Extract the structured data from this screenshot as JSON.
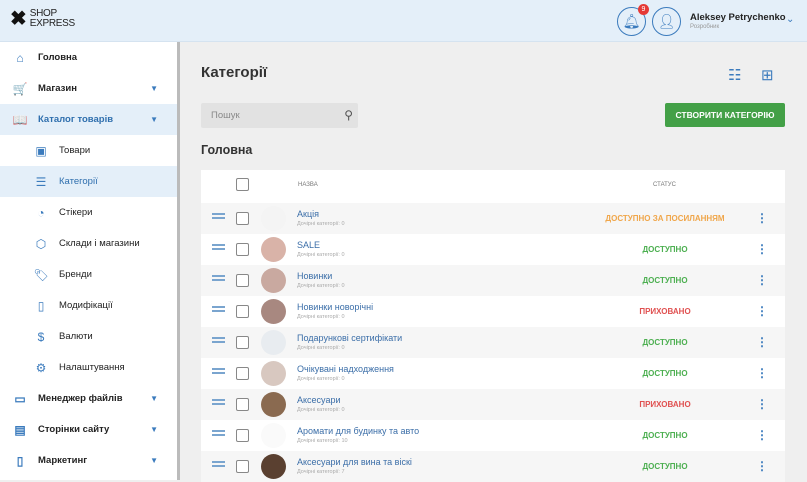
{
  "header": {
    "logo_line1": "SHOP",
    "logo_line2": "EXPRESS",
    "notif_count": "9",
    "user_name": "Aleksey Petrychenko",
    "user_role": "Розробник"
  },
  "sidebar": {
    "items": [
      {
        "label": "Головна",
        "icon": "home-icon",
        "glyph": "⌂",
        "type": "top"
      },
      {
        "label": "Магазин",
        "icon": "cart-icon",
        "glyph": "🛒",
        "type": "top",
        "chev": "▼"
      },
      {
        "label": "Каталог товарів",
        "icon": "book-icon",
        "glyph": "📖",
        "type": "top",
        "chev": "▼",
        "active": true
      },
      {
        "label": "Товари",
        "icon": "box-icon",
        "glyph": "▣",
        "type": "sub"
      },
      {
        "label": "Категорії",
        "icon": "list-icon",
        "glyph": "☰",
        "type": "sub",
        "active": true
      },
      {
        "label": "Стікери",
        "icon": "sticker-icon",
        "glyph": "◔",
        "type": "sub"
      },
      {
        "label": "Склади і магазини",
        "icon": "cube-icon",
        "glyph": "⬡",
        "type": "sub"
      },
      {
        "label": "Бренди",
        "icon": "tag-icon",
        "glyph": "🏷",
        "type": "sub"
      },
      {
        "label": "Модифікації",
        "icon": "bookmark-icon",
        "glyph": "▯",
        "type": "sub"
      },
      {
        "label": "Валюти",
        "icon": "dollar-icon",
        "glyph": "$",
        "type": "sub"
      },
      {
        "label": "Налаштування",
        "icon": "gear-icon",
        "glyph": "⚙",
        "type": "sub"
      },
      {
        "label": "Менеджер файлів",
        "icon": "folder-icon",
        "glyph": "▭",
        "type": "top",
        "chev": "▼"
      },
      {
        "label": "Сторінки сайту",
        "icon": "pages-icon",
        "glyph": "▤",
        "type": "top",
        "chev": "▼"
      },
      {
        "label": "Маркетинг",
        "icon": "marketing-icon",
        "glyph": "▯",
        "type": "top",
        "chev": "▼"
      }
    ]
  },
  "main": {
    "title": "Категорії",
    "search_placeholder": "Пошук",
    "create_label": "СТВОРИТИ КАТЕГОРІЮ",
    "section": "Головна",
    "columns": {
      "name": "НАЗВА",
      "status": "СТАТУС"
    },
    "rows": [
      {
        "name": "Акція",
        "sub": "Дочірні категорії: 0",
        "status": "ДОСТУПНО ЗА ПОСИЛАННЯМ",
        "status_color": "#f0a64a",
        "thumb": "#f4f4f4"
      },
      {
        "name": "SALE",
        "sub": "Дочірні категорії: 0",
        "status": "ДОСТУПНО",
        "status_color": "#4caf50",
        "thumb": "#d9b3a8"
      },
      {
        "name": "Новинки",
        "sub": "Дочірні категорії: 0",
        "status": "ДОСТУПНО",
        "status_color": "#4caf50",
        "thumb": "#c9a9a0"
      },
      {
        "name": "Новинки новорічні",
        "sub": "Дочірні категорії: 0",
        "status": "ПРИХОВАНО",
        "status_color": "#e05050",
        "thumb": "#a88880"
      },
      {
        "name": "Подарункові сертифікати",
        "sub": "Дочірні категорії: 0",
        "status": "ДОСТУПНО",
        "status_color": "#4caf50",
        "thumb": "#e8ecf0"
      },
      {
        "name": "Очікувані надходження",
        "sub": "Дочірні категорії: 0",
        "status": "ДОСТУПНО",
        "status_color": "#4caf50",
        "thumb": "#d8c8c0"
      },
      {
        "name": "Аксесуари",
        "sub": "Дочірні категорії: 0",
        "status": "ПРИХОВАНО",
        "status_color": "#e05050",
        "thumb": "#8a6a50"
      },
      {
        "name": "Аромати для будинку та авто",
        "sub": "Дочірні категорії: 10",
        "status": "ДОСТУПНО",
        "status_color": "#4caf50",
        "thumb": "#fafafa"
      },
      {
        "name": "Аксесуари для вина та віскі",
        "sub": "Дочірні категорії: 7",
        "status": "ДОСТУПНО",
        "status_color": "#4caf50",
        "thumb": "#5a4030"
      }
    ]
  }
}
